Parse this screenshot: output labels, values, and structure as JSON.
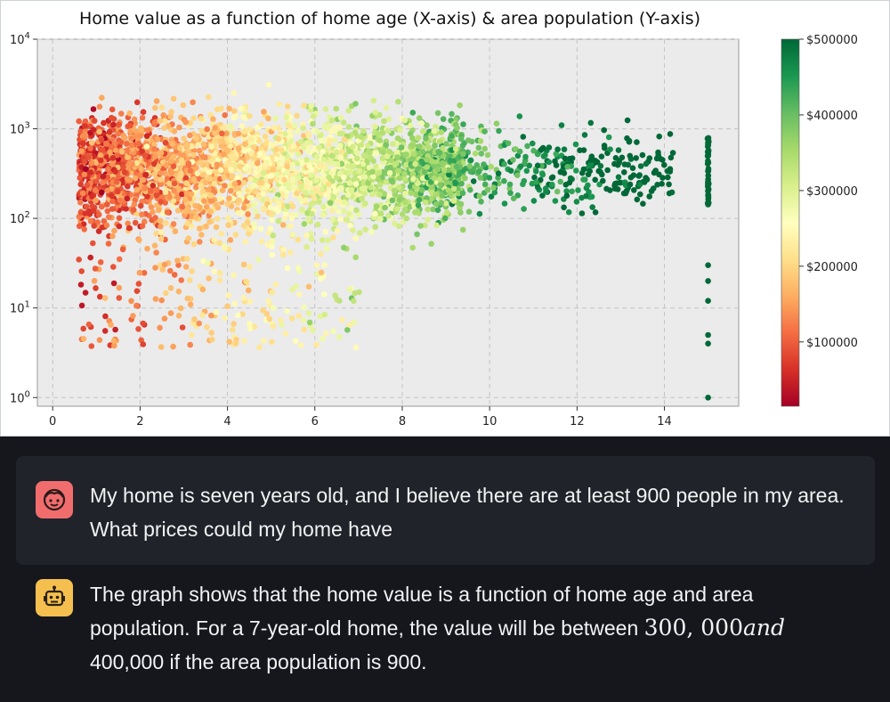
{
  "chart_data": {
    "type": "scatter",
    "title": "Home value as a function of home age (X-axis) & area population (Y-axis)",
    "x_ticks": [
      "0",
      "2",
      "4",
      "6",
      "8",
      "10",
      "12",
      "14"
    ],
    "x_tick_values": [
      0,
      2,
      4,
      6,
      8,
      10,
      12,
      14
    ],
    "y_scale": "log",
    "y_tick_values": [
      1,
      10,
      100,
      1000,
      10000
    ],
    "y_ticks": [
      {
        "base": "10",
        "exp": "0"
      },
      {
        "base": "10",
        "exp": "1"
      },
      {
        "base": "10",
        "exp": "2"
      },
      {
        "base": "10",
        "exp": "3"
      },
      {
        "base": "10",
        "exp": "4"
      }
    ],
    "xlim": [
      -0.35,
      15.7
    ],
    "ylim": [
      0.8,
      10000
    ],
    "grid": true,
    "colormap": "RdYlGn",
    "colormap_stops": [
      "#a50026",
      "#d73027",
      "#f46d43",
      "#fdae61",
      "#fee08b",
      "#ffffbf",
      "#d9ef8b",
      "#a6d96a",
      "#66bd63",
      "#1a9850",
      "#006837"
    ],
    "color_range": [
      15000,
      500000
    ],
    "colorbar_ticks": [
      "$100000",
      "$200000",
      "$300000",
      "$400000",
      "$500000"
    ],
    "colorbar_tick_values": [
      100000,
      200000,
      300000,
      400000,
      500000
    ],
    "annotation": "Dense cloud of thousands of points; value rises with home age (red under 4 yrs, yellow 5-7, green 8+), population mostly 100-2000, a vertical stack of points at age 15."
  },
  "chat": {
    "user_message": "My home is seven years old, and I believe there are at least 900 people in my area. What prices could my home have",
    "bot_part1": "The graph shows that the home value is a function of home age and area population. For a 7-year-old home, the value will be between ",
    "bot_math_number": "300, 000",
    "bot_math_var": "and",
    "bot_part2": "400,000 if the area population is 900."
  },
  "icons": {
    "user_avatar": "user-face-icon",
    "bot_avatar": "robot-icon"
  }
}
